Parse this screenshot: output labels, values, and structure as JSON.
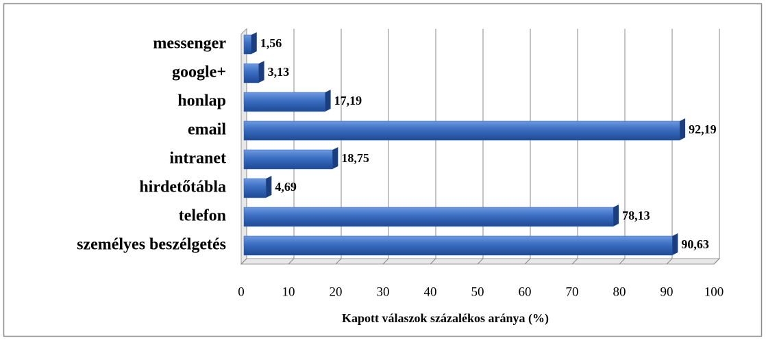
{
  "chart_data": {
    "type": "bar",
    "orientation": "horizontal",
    "categories": [
      "messenger",
      "google+",
      "honlap",
      "email",
      "intranet",
      "hirdetőtábla",
      "telefon",
      "személyes beszélgetés"
    ],
    "values": [
      1.56,
      3.13,
      17.19,
      92.19,
      18.75,
      4.69,
      78.13,
      90.63
    ],
    "value_labels": [
      "1,56",
      "3,13",
      "17,19",
      "92,19",
      "18,75",
      "4,69",
      "78,13",
      "90,63"
    ],
    "color": "#2e5fb0",
    "xlabel": "Kapott válaszok százalékos aránya (%)",
    "xlim": [
      0,
      100
    ],
    "xticks": [
      0,
      10,
      20,
      30,
      40,
      50,
      60,
      70,
      80,
      90,
      100
    ],
    "grid": true
  }
}
